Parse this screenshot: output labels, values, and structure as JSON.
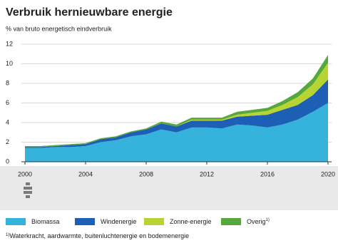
{
  "chart_data": {
    "type": "stacked-area",
    "title": "Verbruik hernieuwbare energie",
    "subtitle": "% van bruto energetisch eindverbruik",
    "x": [
      2000,
      2001,
      2002,
      2003,
      2004,
      2005,
      2006,
      2007,
      2008,
      2009,
      2010,
      2011,
      2012,
      2013,
      2014,
      2015,
      2016,
      2017,
      2018,
      2019,
      2020
    ],
    "series": [
      {
        "name": "Biomassa",
        "color": "#35b3dc",
        "values": [
          1.4,
          1.4,
          1.5,
          1.5,
          1.6,
          2.0,
          2.2,
          2.6,
          2.8,
          3.3,
          3.0,
          3.5,
          3.5,
          3.4,
          3.8,
          3.7,
          3.5,
          3.8,
          4.3,
          5.1,
          6.0
        ]
      },
      {
        "name": "Windenergie",
        "color": "#1d5fb5",
        "values": [
          0.1,
          0.1,
          0.1,
          0.2,
          0.2,
          0.3,
          0.3,
          0.4,
          0.5,
          0.6,
          0.6,
          0.7,
          0.7,
          0.8,
          0.8,
          1.0,
          1.3,
          1.5,
          1.5,
          1.7,
          2.4
        ]
      },
      {
        "name": "Zonne-energie",
        "color": "#b7d433",
        "values": [
          0,
          0,
          0,
          0,
          0,
          0,
          0,
          0,
          0,
          0,
          0,
          0.1,
          0.1,
          0.1,
          0.2,
          0.3,
          0.4,
          0.5,
          0.8,
          1.1,
          1.7
        ]
      },
      {
        "name": "Overig",
        "color": "#56a83c",
        "values": [
          0.1,
          0.1,
          0.1,
          0.1,
          0.1,
          0.1,
          0.1,
          0.1,
          0.1,
          0.2,
          0.2,
          0.2,
          0.2,
          0.2,
          0.3,
          0.3,
          0.3,
          0.4,
          0.5,
          0.6,
          0.8
        ],
        "note": "1)"
      }
    ],
    "xlim": [
      2000,
      2020
    ],
    "xticks": [
      2000,
      2004,
      2008,
      2012,
      2016,
      2020
    ],
    "ylim": [
      0,
      12
    ],
    "yticks": [
      0,
      2,
      4,
      6,
      8,
      10,
      12
    ],
    "grid": true,
    "footnote": {
      "marker": "1)",
      "text": "Waterkracht, aardwarmte, buitenluchtenergie en bodemenergie"
    }
  }
}
